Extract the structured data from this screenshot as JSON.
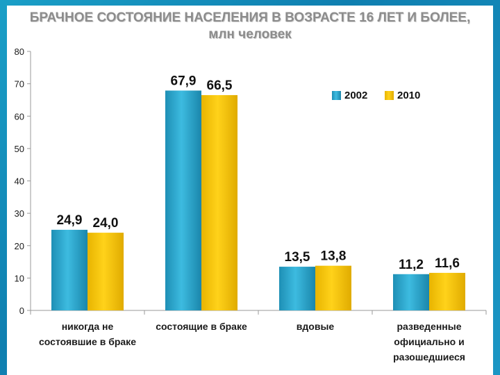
{
  "chart_data": {
    "type": "bar",
    "title": "БРАЧНОЕ СОСТОЯНИЕ НАСЕЛЕНИЯ В ВОЗРАСТЕ 16 ЛЕТ И БОЛЕЕ,",
    "subtitle": "млн человек",
    "categories": [
      [
        "никогда не",
        "состоявшие в браке"
      ],
      [
        "состоящие в браке"
      ],
      [
        "вдовые"
      ],
      [
        "разведенные",
        "официально и",
        "разошедшиеся"
      ]
    ],
    "series": [
      {
        "name": "2002",
        "values": [
          24.9,
          67.9,
          13.5,
          11.2
        ],
        "labels": [
          "24,9",
          "67,9",
          "13,5",
          "11,2"
        ],
        "color": "#2aa3c8"
      },
      {
        "name": "2010",
        "values": [
          24.0,
          66.5,
          13.8,
          11.6
        ],
        "labels": [
          "24,0",
          "66,5",
          "13,8",
          "11,6"
        ],
        "color": "#f5c400"
      }
    ],
    "ylim": [
      0,
      80
    ],
    "yticks": [
      0,
      10,
      20,
      30,
      40,
      50,
      60,
      70,
      80
    ],
    "legend_position": "top-right",
    "grid": false
  }
}
